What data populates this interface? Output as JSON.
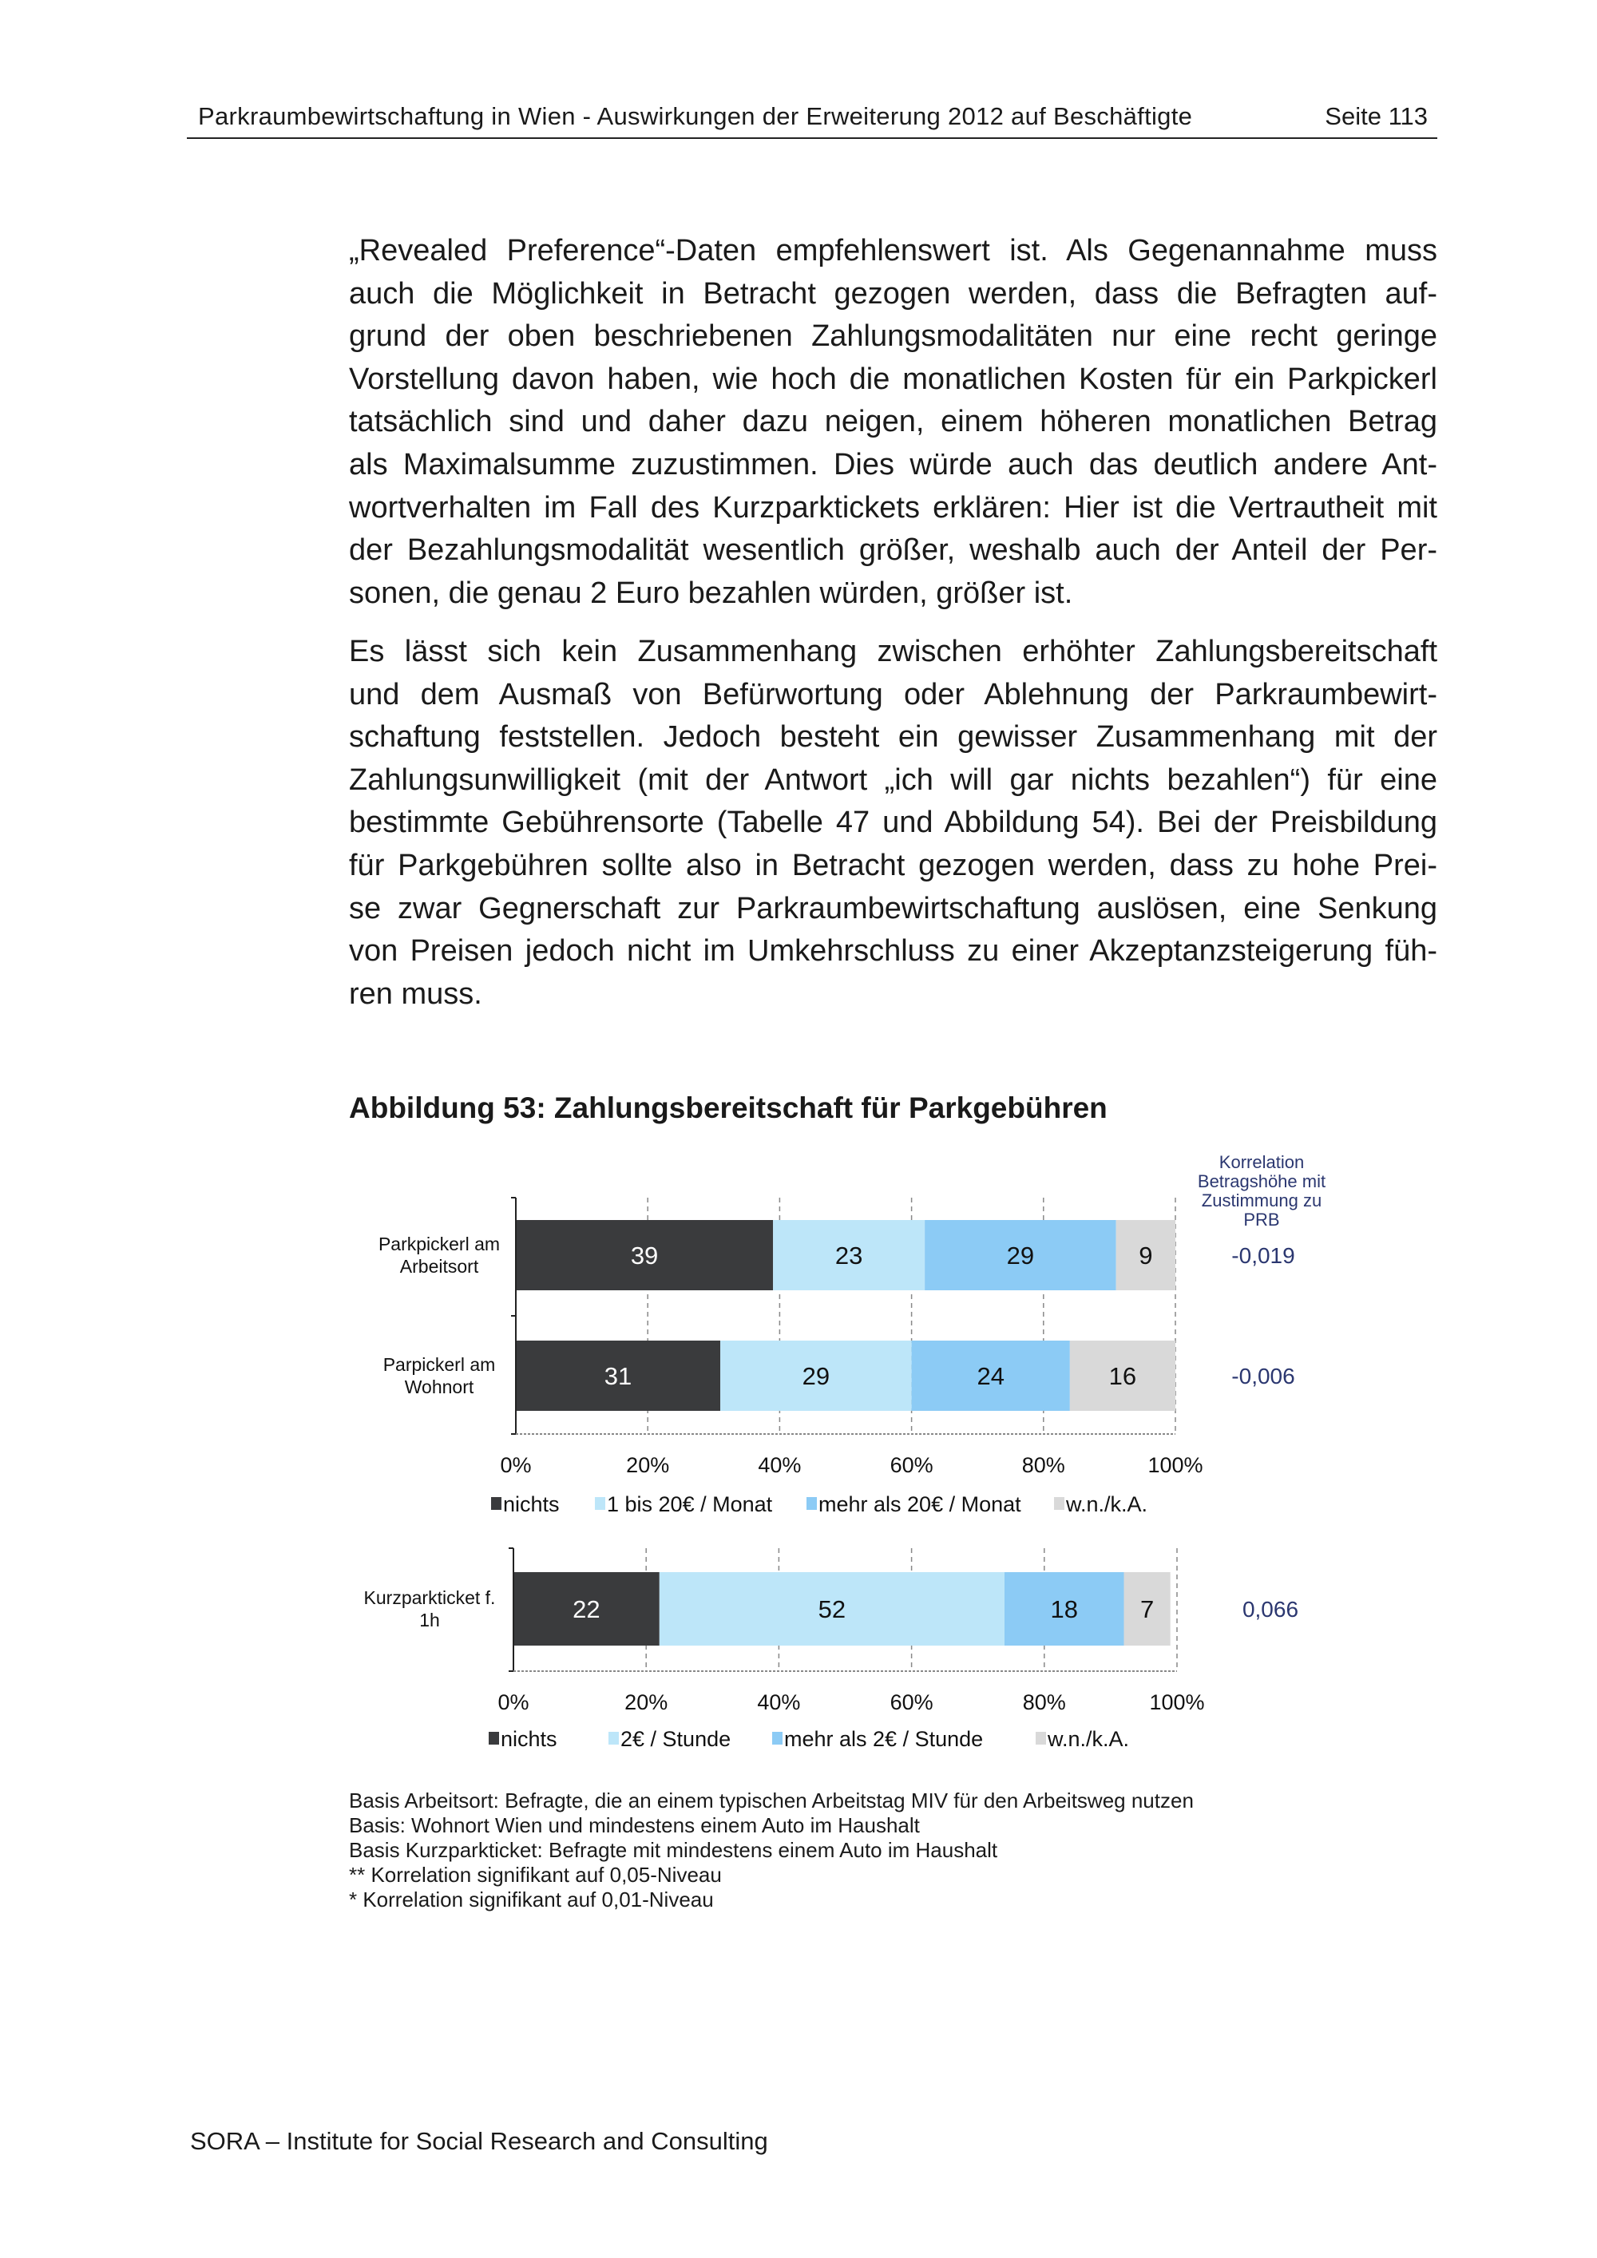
{
  "header": {
    "title": "Parkraumbewirtschaftung in Wien - Auswirkungen der Erweiterung 2012 auf Beschäftigte",
    "page": "Seite 113"
  },
  "body": {
    "paragraph1": [
      "„Revealed Preference“-Daten empfehlenswert ist. Als Gegenannahme muss",
      "auch die Möglichkeit in Betracht gezogen werden, dass die Befragten auf-",
      "grund der oben beschriebenen Zahlungsmodalitäten nur eine recht geringe",
      "Vorstellung davon haben, wie hoch die monatlichen Kosten für ein Parkpickerl",
      "tatsächlich sind und daher dazu neigen, einem höheren monatlichen Betrag",
      "als Maximalsumme zuzustimmen. Dies würde auch das deutlich andere Ant-",
      "wortverhalten im Fall des Kurzparktickets erklären: Hier ist die Vertrautheit mit",
      "der Bezahlungsmodalität wesentlich größer, weshalb auch der Anteil der Per-",
      "sonen, die genau 2 Euro bezahlen würden, größer ist."
    ],
    "paragraph2": [
      "Es lässt sich kein Zusammenhang zwischen erhöhter Zahlungsbereitschaft",
      "und dem Ausmaß von Befürwortung oder Ablehnung der Parkraumbewirt-",
      "schaftung feststellen. Jedoch besteht ein gewisser Zusammenhang mit der",
      "Zahlungsunwilligkeit (mit der Antwort „ich will gar nichts bezahlen“) für eine",
      "bestimmte Gebührensorte (Tabelle 47 und Abbildung 54). Bei der Preisbildung",
      "für Parkgebühren sollte also in Betracht gezogen werden, dass zu hohe Prei-",
      "se zwar Gegnerschaft zur Parkraumbewirtschaftung auslösen, eine Senkung",
      "von Preisen jedoch nicht im Umkehrschluss zu einer Akzeptanzsteigerung füh-",
      "ren muss."
    ]
  },
  "figure": {
    "title": "Abbildung 53: Zahlungsbereitschaft für Parkgebühren",
    "correlation_header": "Korrelation Betragshöhe mit Zustimmung zu PRB"
  },
  "chart_data": [
    {
      "type": "bar",
      "orientation": "horizontal",
      "stacked": true,
      "categories": [
        "Parkpickerl am Arbeitsort",
        "Parpickerl am Wohnort"
      ],
      "series": [
        {
          "name": "nichts",
          "values": [
            39,
            31
          ],
          "color": "#3a3b3d"
        },
        {
          "name": "1 bis 20€ / Monat",
          "values": [
            23,
            29
          ],
          "color": "#bde6f9"
        },
        {
          "name": "mehr als 20€ / Monat",
          "values": [
            29,
            24
          ],
          "color": "#8ccbf5"
        },
        {
          "name": "w.n./k.A.",
          "values": [
            9,
            16
          ],
          "color": "#d9d9d9"
        }
      ],
      "correlations": [
        "-0,019",
        "-0,006"
      ],
      "xticks": [
        "0%",
        "20%",
        "40%",
        "60%",
        "80%",
        "100%"
      ],
      "xlim": [
        0,
        100
      ],
      "grid": true,
      "legend": "bottom"
    },
    {
      "type": "bar",
      "orientation": "horizontal",
      "stacked": true,
      "categories": [
        "Kurzparkticket f. 1h"
      ],
      "series": [
        {
          "name": "nichts",
          "values": [
            22
          ],
          "color": "#3a3b3d"
        },
        {
          "name": "2€ / Stunde",
          "values": [
            52
          ],
          "color": "#bde6f9"
        },
        {
          "name": "mehr als 2€ / Stunde",
          "values": [
            18
          ],
          "color": "#8ccbf5"
        },
        {
          "name": "w.n./k.A.",
          "values": [
            7
          ],
          "color": "#d9d9d9"
        }
      ],
      "correlations": [
        "0,066"
      ],
      "xticks": [
        "0%",
        "20%",
        "40%",
        "60%",
        "80%",
        "100%"
      ],
      "xlim": [
        0,
        100
      ],
      "grid": true,
      "legend": "bottom"
    }
  ],
  "notes": [
    "Basis Arbeitsort: Befragte, die an einem typischen Arbeitstag MIV für den Arbeitsweg nutzen",
    "Basis: Wohnort Wien und mindestens einem Auto im Haushalt",
    "Basis Kurzparkticket: Befragte mit mindestens einem Auto im Haushalt",
    "** Korrelation signifikant auf 0,05-Niveau",
    "* Korrelation signifikant auf 0,01-Niveau"
  ],
  "footer": "SORA – Institute for Social Research and Consulting"
}
